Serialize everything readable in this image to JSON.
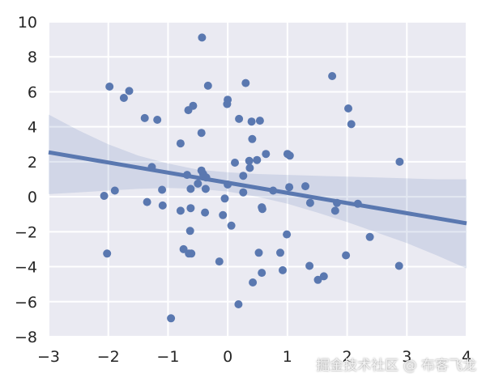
{
  "chart_data": {
    "type": "scatter",
    "title": "",
    "xlabel": "",
    "ylabel": "",
    "xlim": [
      -3,
      4
    ],
    "ylim": [
      -8,
      10
    ],
    "xticks": [
      -3,
      -2,
      -1,
      0,
      1,
      2,
      3,
      4
    ],
    "yticks": [
      -8,
      -6,
      -4,
      -2,
      0,
      2,
      4,
      6,
      8,
      10
    ],
    "grid": true,
    "legend": "none",
    "colors": {
      "background": "#eaeaf2",
      "grid": "#ffffff",
      "points": "#5a78b0",
      "line": "#5a78b0",
      "band": "#5a78b0"
    },
    "points": [
      [
        -0.43,
        9.1
      ],
      [
        1.75,
        6.9
      ],
      [
        0.3,
        6.5
      ],
      [
        -0.33,
        6.35
      ],
      [
        -1.98,
        6.3
      ],
      [
        -1.65,
        6.05
      ],
      [
        -1.74,
        5.65
      ],
      [
        -0.58,
        5.2
      ],
      [
        -0.66,
        4.95
      ],
      [
        0.0,
        5.55
      ],
      [
        -0.01,
        5.3
      ],
      [
        2.02,
        5.05
      ],
      [
        -1.39,
        4.5
      ],
      [
        -1.18,
        4.4
      ],
      [
        0.19,
        4.45
      ],
      [
        0.4,
        4.3
      ],
      [
        0.54,
        4.35
      ],
      [
        2.07,
        4.15
      ],
      [
        -0.44,
        3.65
      ],
      [
        0.41,
        3.3
      ],
      [
        -0.79,
        3.05
      ],
      [
        0.64,
        2.45
      ],
      [
        1.0,
        2.45
      ],
      [
        1.04,
        2.35
      ],
      [
        0.36,
        2.05
      ],
      [
        0.49,
        2.1
      ],
      [
        0.12,
        1.95
      ],
      [
        2.88,
        2.0
      ],
      [
        -1.27,
        1.7
      ],
      [
        0.37,
        1.65
      ],
      [
        -0.44,
        1.5
      ],
      [
        -0.41,
        1.3
      ],
      [
        -0.68,
        1.25
      ],
      [
        -0.36,
        1.1
      ],
      [
        0.26,
        1.2
      ],
      [
        -0.5,
        0.75
      ],
      [
        -0.37,
        0.45
      ],
      [
        -0.62,
        0.45
      ],
      [
        0.0,
        0.7
      ],
      [
        1.3,
        0.6
      ],
      [
        1.03,
        0.55
      ],
      [
        -1.1,
        0.4
      ],
      [
        -1.89,
        0.35
      ],
      [
        0.76,
        0.35
      ],
      [
        0.26,
        0.25
      ],
      [
        -2.07,
        0.05
      ],
      [
        -0.05,
        -0.1
      ],
      [
        -1.35,
        -0.3
      ],
      [
        1.38,
        -0.35
      ],
      [
        1.83,
        -0.35
      ],
      [
        2.18,
        -0.4
      ],
      [
        -1.09,
        -0.5
      ],
      [
        0.57,
        -0.6
      ],
      [
        0.58,
        -0.7
      ],
      [
        -0.62,
        -0.65
      ],
      [
        -0.79,
        -0.8
      ],
      [
        -0.38,
        -0.9
      ],
      [
        1.8,
        -0.8
      ],
      [
        -0.08,
        -1.05
      ],
      [
        0.06,
        -1.65
      ],
      [
        -0.63,
        -1.95
      ],
      [
        0.99,
        -2.15
      ],
      [
        2.38,
        -2.3
      ],
      [
        -0.74,
        -3.0
      ],
      [
        -0.65,
        -3.25
      ],
      [
        -0.61,
        -3.25
      ],
      [
        -2.02,
        -3.25
      ],
      [
        0.52,
        -3.2
      ],
      [
        0.88,
        -3.2
      ],
      [
        1.98,
        -3.35
      ],
      [
        -0.14,
        -3.7
      ],
      [
        1.37,
        -3.95
      ],
      [
        2.87,
        -3.95
      ],
      [
        0.92,
        -4.2
      ],
      [
        0.57,
        -4.35
      ],
      [
        1.61,
        -4.55
      ],
      [
        1.51,
        -4.75
      ],
      [
        0.42,
        -4.9
      ],
      [
        0.18,
        -6.15
      ],
      [
        -0.95,
        -6.95
      ]
    ],
    "regression": {
      "slope": -0.58,
      "intercept": 0.8
    },
    "ci_band": {
      "x": [
        -3,
        -2.5,
        -2,
        -1.5,
        -1,
        -0.5,
        0,
        0.5,
        1,
        1.5,
        2,
        2.5,
        3,
        3.5,
        4
      ],
      "upper": [
        4.7,
        3.8,
        3.0,
        2.35,
        1.9,
        1.55,
        1.4,
        1.3,
        1.25,
        1.2,
        1.15,
        1.1,
        1.05,
        1.0,
        1.0
      ],
      "lower": [
        0.15,
        0.25,
        0.35,
        0.45,
        0.5,
        0.45,
        0.3,
        0.0,
        -0.4,
        -0.9,
        -1.45,
        -2.05,
        -2.65,
        -3.35,
        -4.1
      ]
    }
  },
  "watermark": "掘金技术社区 @ 布客飞龙"
}
